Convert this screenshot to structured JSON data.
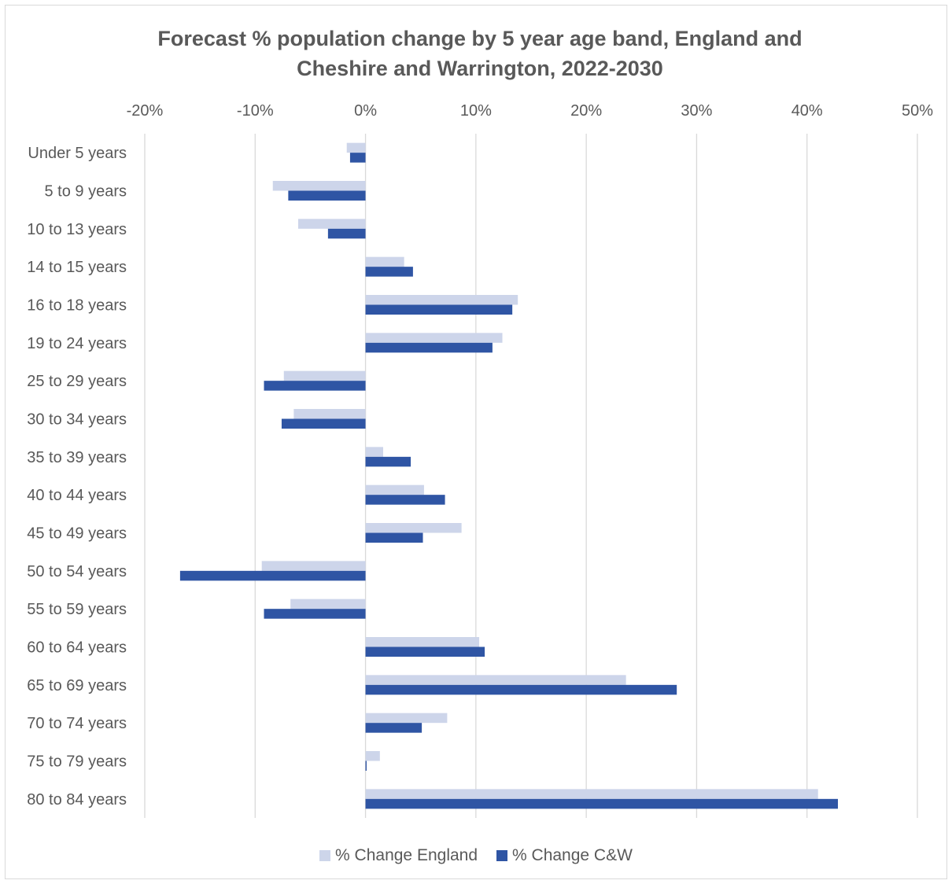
{
  "chart_data": {
    "type": "bar",
    "orientation": "horizontal",
    "title": "Forecast % population change by 5 year age band, England and Cheshire and Warrington, 2022-2030",
    "title_lines": [
      "Forecast % population change by 5 year age band, England and",
      "Cheshire and Warrington, 2022-2030"
    ],
    "categories": [
      "Under 5 years",
      "5 to 9 years",
      "10 to 13 years",
      "14 to 15 years",
      "16 to 18 years",
      "19 to 24 years",
      "25 to 29 years",
      "30 to 34 years",
      "35 to 39 years",
      "40 to 44 years",
      "45 to 49 years",
      "50 to 54 years",
      "55 to 59 years",
      "60 to 64 years",
      "65 to 69 years",
      "70 to 74 years",
      "75 to 79 years",
      "80 to 84 years"
    ],
    "series": [
      {
        "name": "% Change England",
        "color": "#cdd5ea",
        "values": [
          -1.7,
          -8.4,
          -6.1,
          3.5,
          13.8,
          12.4,
          -7.4,
          -6.5,
          1.6,
          5.3,
          8.7,
          -9.4,
          -6.8,
          10.3,
          23.6,
          7.4,
          1.3,
          41.0
        ]
      },
      {
        "name": "% Change C&W",
        "color": "#2f55a4",
        "values": [
          -1.4,
          -7.0,
          -3.4,
          4.3,
          13.3,
          11.5,
          -9.2,
          -7.6,
          4.1,
          7.2,
          5.2,
          -16.8,
          -9.2,
          10.8,
          28.2,
          5.1,
          0.1,
          42.8
        ]
      }
    ],
    "xlim": [
      -20,
      50
    ],
    "xticks": [
      -20,
      -10,
      0,
      10,
      20,
      30,
      40,
      50
    ],
    "xtick_labels": [
      "-20%",
      "-10%",
      "0%",
      "10%",
      "20%",
      "30%",
      "40%",
      "50%"
    ],
    "xlabel": "",
    "ylabel": "",
    "grid": true,
    "legend_position": "bottom"
  }
}
